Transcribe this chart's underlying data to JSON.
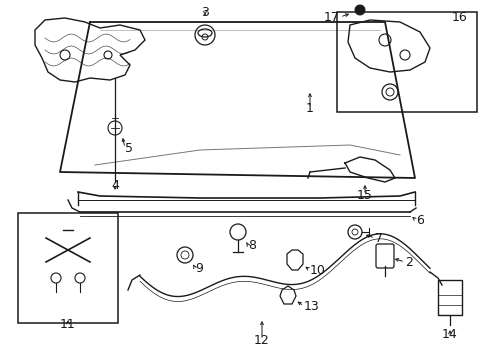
{
  "bg_color": "#ffffff",
  "line_color": "#1a1a1a",
  "fig_width": 4.89,
  "fig_height": 3.6,
  "dpi": 100,
  "font_size": 9
}
